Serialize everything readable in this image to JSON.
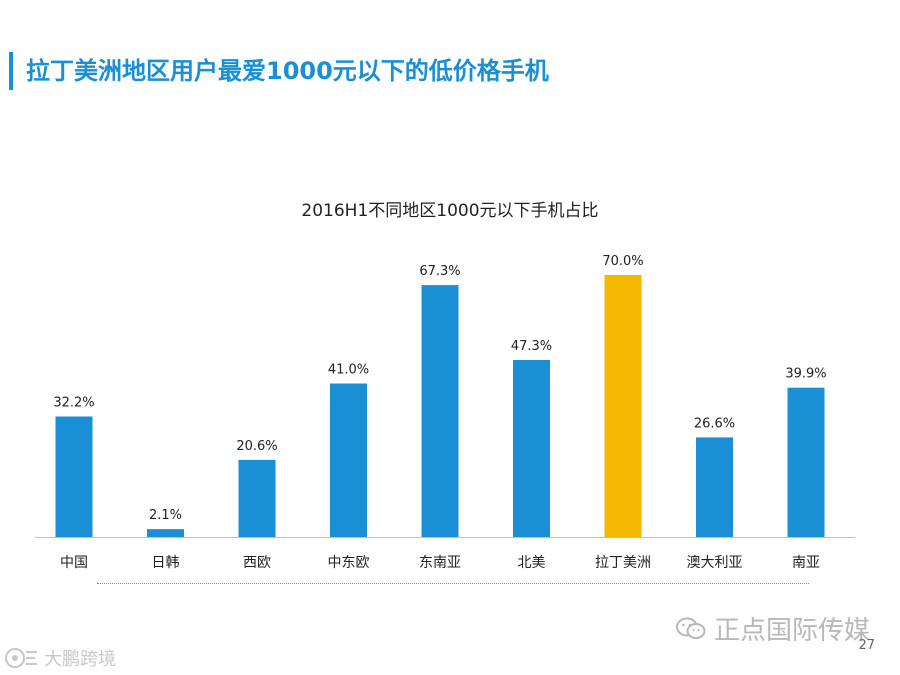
{
  "page": {
    "title": "拉丁美洲地区用户最爱1000元以下的低价格手机",
    "page_number": "27"
  },
  "watermark": {
    "text": "正点国际传媒",
    "icon": "wechat-icon"
  },
  "source_logo": {
    "text": "大鹏跨境",
    "icon": "logo-mark"
  },
  "colors": {
    "accent": "#1b8fd6",
    "bar_default": "#1b8fd6",
    "bar_highlight": "#f5b800"
  },
  "chart_data": {
    "type": "bar",
    "title": "2016H1不同地区1000元以下手机占比",
    "xlabel": "",
    "ylabel": "",
    "ylim": [
      0,
      70
    ],
    "grid": false,
    "categories": [
      "中国",
      "日韩",
      "西欧",
      "中东欧",
      "东南亚",
      "北美",
      "拉丁美洲",
      "澳大利亚",
      "南亚"
    ],
    "values": [
      32.2,
      2.1,
      20.6,
      41.0,
      67.3,
      47.3,
      70.0,
      26.6,
      39.9
    ],
    "value_labels": [
      "32.2%",
      "2.1%",
      "20.6%",
      "41.0%",
      "67.3%",
      "47.3%",
      "70.0%",
      "26.6%",
      "39.9%"
    ],
    "highlight_category": "拉丁美洲"
  }
}
